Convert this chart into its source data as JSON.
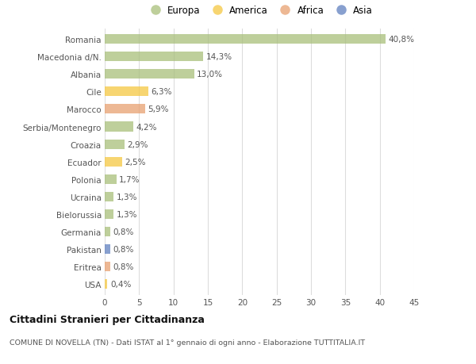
{
  "title": "Cittadini Stranieri per Cittadinanza",
  "subtitle": "COMUNE DI NOVELLA (TN) - Dati ISTAT al 1° gennaio di ogni anno - Elaborazione TUTTITALIA.IT",
  "categories": [
    "Romania",
    "Macedonia d/N.",
    "Albania",
    "Cile",
    "Marocco",
    "Serbia/Montenegro",
    "Croazia",
    "Ecuador",
    "Polonia",
    "Ucraina",
    "Bielorussia",
    "Germania",
    "Pakistan",
    "Eritrea",
    "USA"
  ],
  "values": [
    40.8,
    14.3,
    13.0,
    6.3,
    5.9,
    4.2,
    2.9,
    2.5,
    1.7,
    1.3,
    1.3,
    0.8,
    0.8,
    0.8,
    0.4
  ],
  "labels": [
    "40,8%",
    "14,3%",
    "13,0%",
    "6,3%",
    "5,9%",
    "4,2%",
    "2,9%",
    "2,5%",
    "1,7%",
    "1,3%",
    "1,3%",
    "0,8%",
    "0,8%",
    "0,8%",
    "0,4%"
  ],
  "bar_colors": [
    "#a8bf7a",
    "#a8bf7a",
    "#a8bf7a",
    "#f5c842",
    "#e8a070",
    "#a8bf7a",
    "#a8bf7a",
    "#f5c842",
    "#a8bf7a",
    "#a8bf7a",
    "#a8bf7a",
    "#a8bf7a",
    "#6080c0",
    "#e8a070",
    "#f5c842"
  ],
  "legend": [
    {
      "label": "Europa",
      "color": "#a8bf7a"
    },
    {
      "label": "America",
      "color": "#f5c842"
    },
    {
      "label": "Africa",
      "color": "#e8a070"
    },
    {
      "label": "Asia",
      "color": "#6080c0"
    }
  ],
  "xlim": [
    0,
    45
  ],
  "xticks": [
    0,
    5,
    10,
    15,
    20,
    25,
    30,
    35,
    40,
    45
  ],
  "background_color": "#ffffff",
  "grid_color": "#dddddd",
  "bar_alpha": 0.75
}
